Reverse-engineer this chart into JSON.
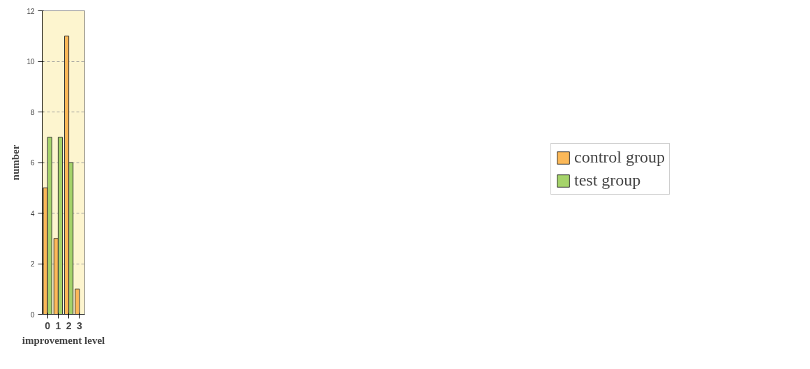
{
  "chart_data": {
    "type": "bar",
    "xlabel": "improvement level",
    "ylabel": "number",
    "categories": [
      "0",
      "1",
      "2",
      "3"
    ],
    "series": [
      {
        "name": "control group",
        "color": "#fbb858",
        "values": [
          5,
          3,
          11,
          1
        ]
      },
      {
        "name": "test group",
        "color": "#a5d36a",
        "values": [
          7,
          7,
          6,
          null
        ]
      }
    ],
    "ylim": [
      0,
      12
    ],
    "yticks": [
      0,
      2,
      4,
      6,
      8,
      10,
      12
    ],
    "grid": "y",
    "legend": "right"
  }
}
